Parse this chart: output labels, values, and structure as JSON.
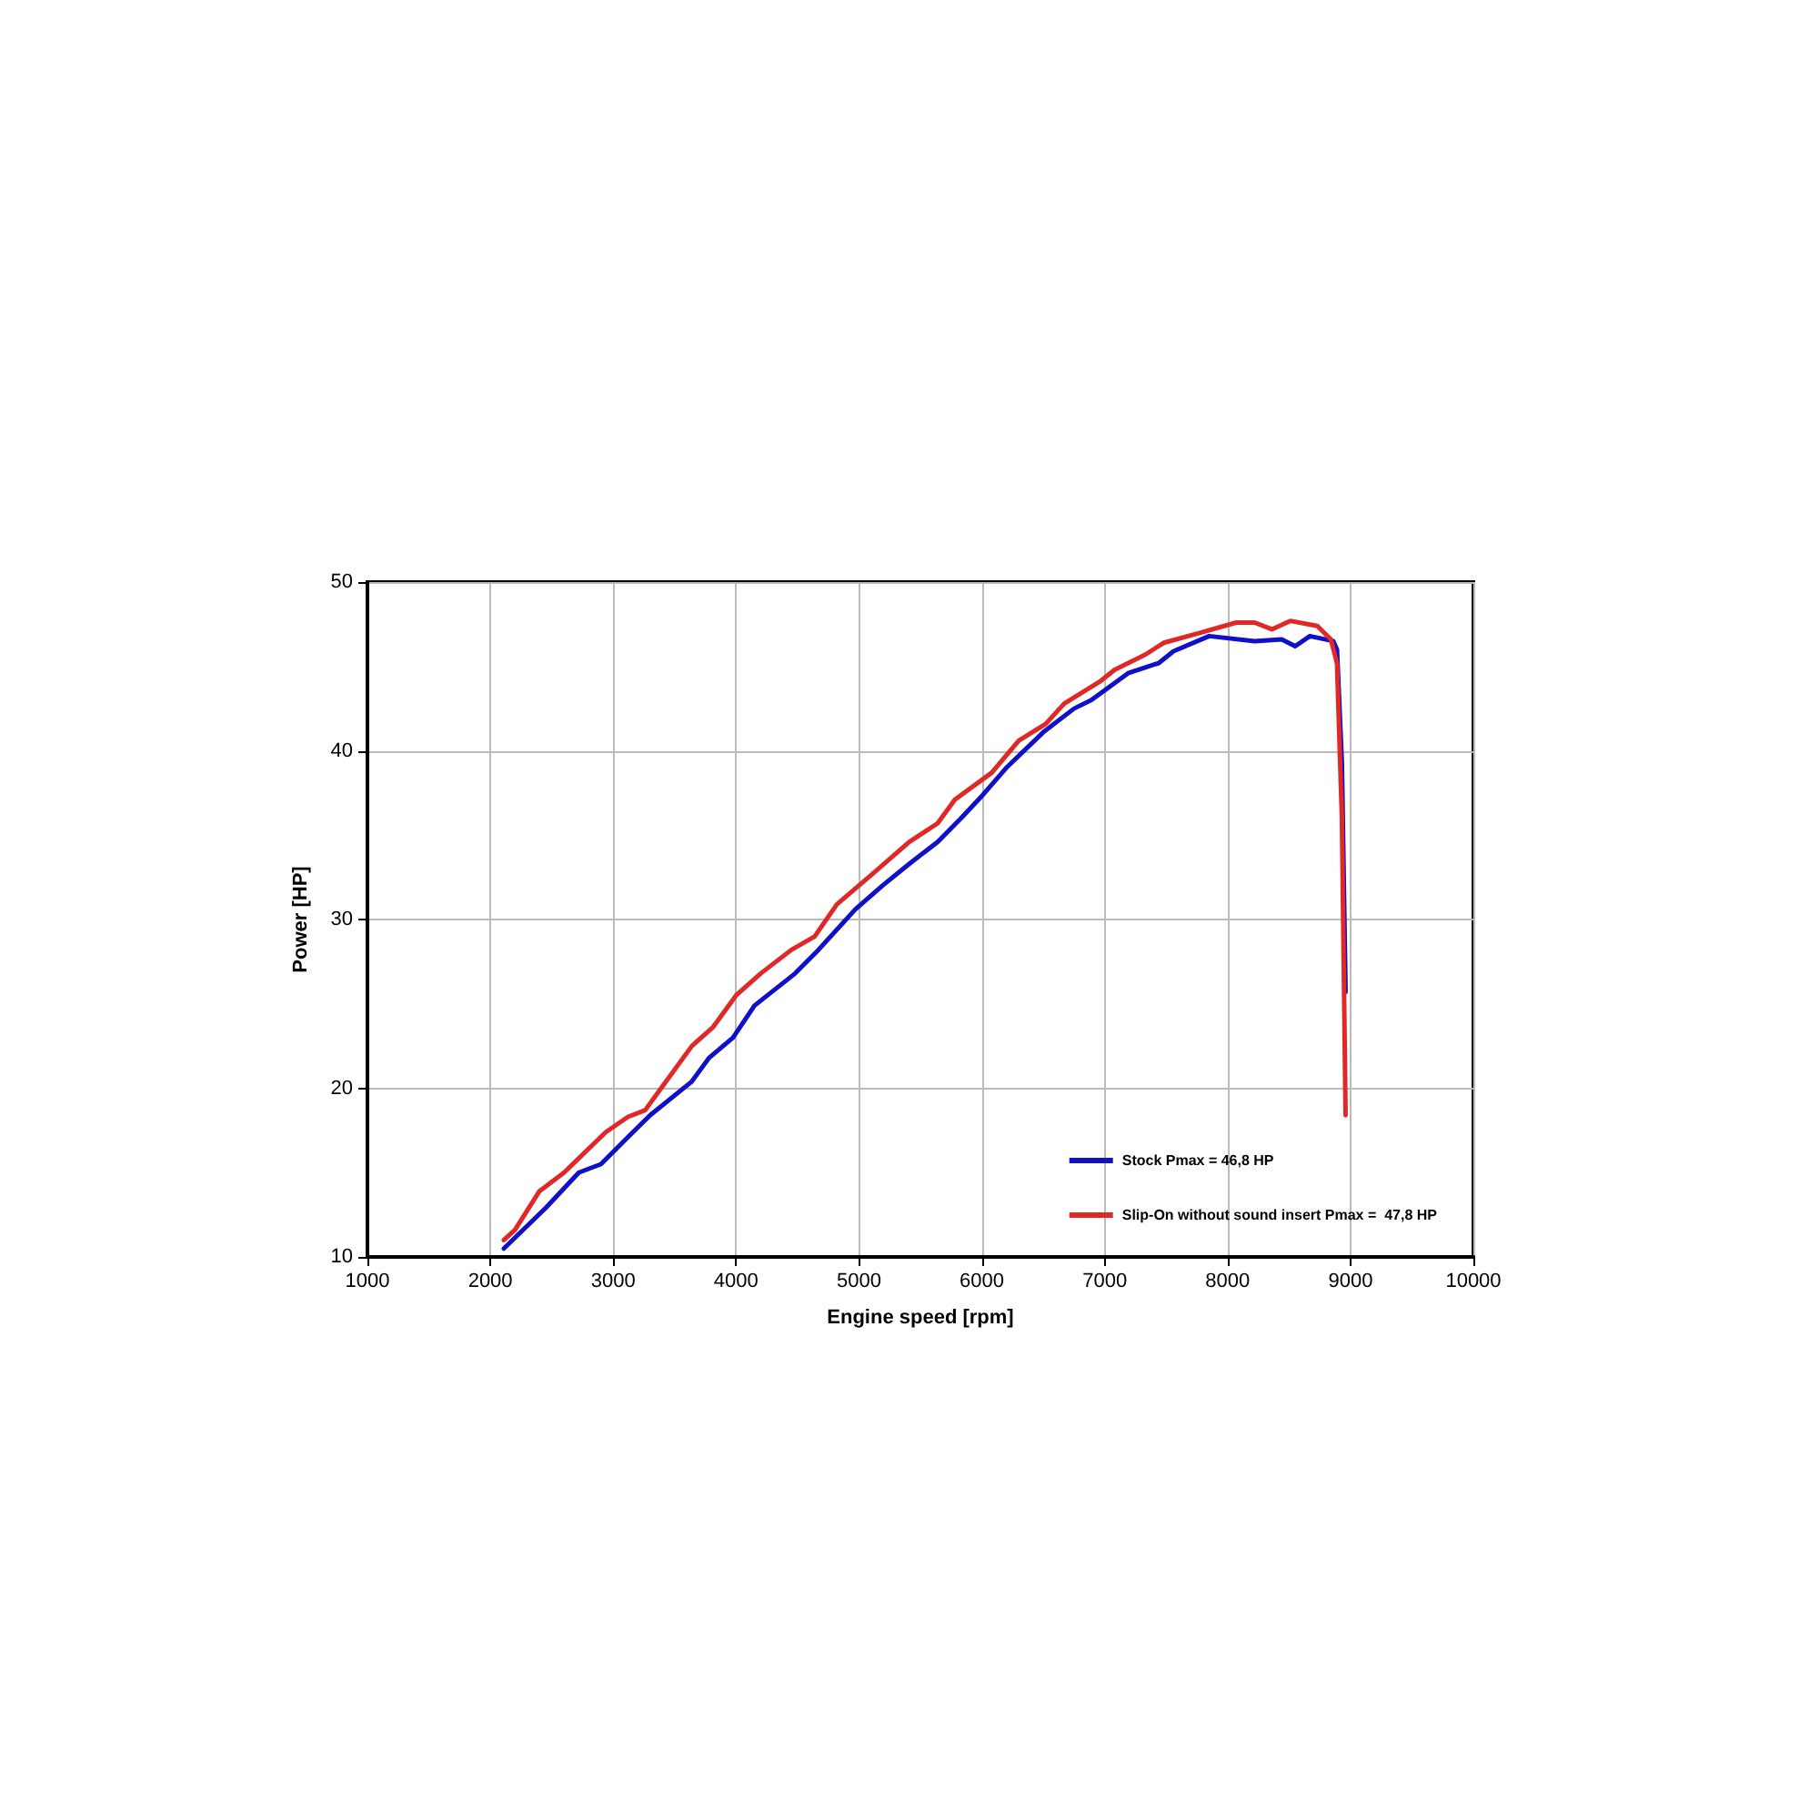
{
  "chart_data": {
    "type": "line",
    "xlabel": "Engine speed [rpm]",
    "ylabel": "Power [HP]",
    "xlim": [
      1000,
      10000
    ],
    "xticks": [
      1000,
      2000,
      3000,
      4000,
      5000,
      6000,
      7000,
      8000,
      9000,
      10000
    ],
    "ylim": [
      10,
      50
    ],
    "yticks": [
      10,
      20,
      30,
      40,
      50
    ],
    "grid": true,
    "legend": "bottom right",
    "marker": "none",
    "line_style": "solid",
    "series": [
      {
        "name": "Stock Pmax = 46,8 HP",
        "color": "#1010c8",
        "x": [
          2110,
          2450,
          2720,
          2900,
          3120,
          3300,
          3640,
          3780,
          3975,
          4150,
          4480,
          4670,
          4970,
          5190,
          5410,
          5640,
          5830,
          6010,
          6200,
          6500,
          6750,
          6890,
          7190,
          7440,
          7560,
          7850,
          8220,
          8440,
          8550,
          8670,
          8860,
          8890,
          8930,
          8960
        ],
        "values": [
          10.5,
          12.9,
          15.0,
          15.5,
          17.1,
          18.4,
          20.4,
          21.8,
          23.0,
          24.9,
          26.8,
          28.2,
          30.6,
          32.0,
          33.3,
          34.6,
          36.0,
          37.4,
          39.0,
          41.1,
          42.5,
          43.0,
          44.6,
          45.2,
          45.9,
          46.8,
          46.5,
          46.6,
          46.2,
          46.8,
          46.5,
          46.0,
          39.3,
          25.7
        ]
      },
      {
        "name": "Slip-On without sound insert Pmax =  47,8 HP",
        "color": "#e02828",
        "x": [
          2110,
          2200,
          2400,
          2600,
          2940,
          3120,
          3260,
          3410,
          3640,
          3810,
          4000,
          4200,
          4450,
          4640,
          4820,
          5110,
          5410,
          5640,
          5780,
          6080,
          6300,
          6520,
          6670,
          6960,
          7080,
          7330,
          7480,
          7780,
          8070,
          8220,
          8360,
          8510,
          8730,
          8840,
          8890,
          8930,
          8960
        ],
        "values": [
          11.0,
          11.6,
          13.9,
          15.0,
          17.4,
          18.3,
          18.7,
          20.2,
          22.5,
          23.6,
          25.5,
          26.8,
          28.2,
          29.0,
          30.9,
          32.7,
          34.6,
          35.7,
          37.1,
          38.7,
          40.6,
          41.6,
          42.8,
          44.1,
          44.8,
          45.7,
          46.4,
          47.0,
          47.6,
          47.6,
          47.2,
          47.7,
          47.4,
          46.6,
          45.2,
          36.0,
          18.4
        ]
      }
    ]
  }
}
